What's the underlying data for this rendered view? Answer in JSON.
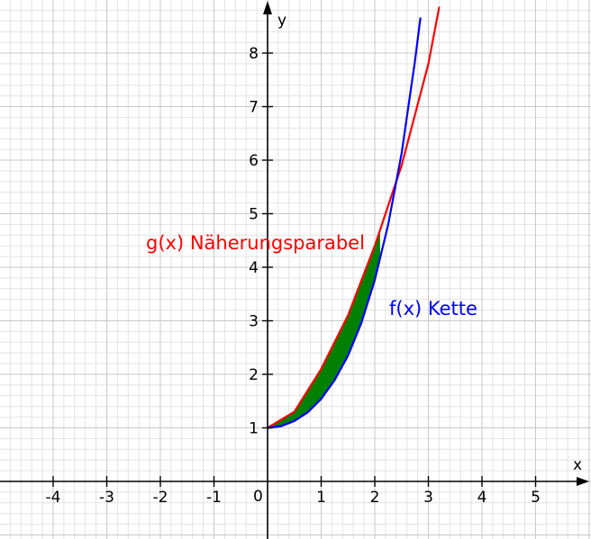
{
  "chart_data": {
    "type": "line",
    "xlabel": "x",
    "ylabel": "y",
    "xlim": [
      -5,
      6
    ],
    "ylim": [
      -1,
      9
    ],
    "grid": true,
    "grid_step": 0.2,
    "x_ticks": [
      -4,
      -3,
      -2,
      -1,
      1,
      2,
      3,
      4,
      5
    ],
    "y_ticks": [
      1,
      2,
      3,
      4,
      5,
      6,
      7,
      8
    ],
    "origin_label": "0",
    "series": [
      {
        "name": "f(x) Kette",
        "color": "#0000ff",
        "x": [
          0,
          0.25,
          0.5,
          0.75,
          1.0,
          1.25,
          1.5,
          1.75,
          2.0,
          2.25,
          2.5,
          2.75,
          2.85
        ],
        "y": [
          1.0,
          1.03,
          1.13,
          1.29,
          1.54,
          1.89,
          2.35,
          2.96,
          3.76,
          4.8,
          6.13,
          7.85,
          8.65
        ]
      },
      {
        "name": "g(x) Näherungsparabel",
        "color": "#ff0000",
        "x": [
          0,
          0.5,
          1.0,
          1.5,
          2.0,
          2.5,
          3.0,
          3.2
        ],
        "y": [
          1.0,
          1.3,
          2.1,
          3.1,
          4.4,
          5.9,
          7.8,
          8.85
        ]
      }
    ],
    "shaded_region": {
      "color": "#008000",
      "between": [
        "g(x) Näherungsparabel",
        "f(x) Kette"
      ],
      "x_from": 0,
      "x_to": 2.1
    },
    "annotations": [
      {
        "text": "g(x) Näherungsparabel",
        "color": "#ff0000"
      },
      {
        "text": "f(x) Kette",
        "color": "#0000ff"
      }
    ]
  }
}
